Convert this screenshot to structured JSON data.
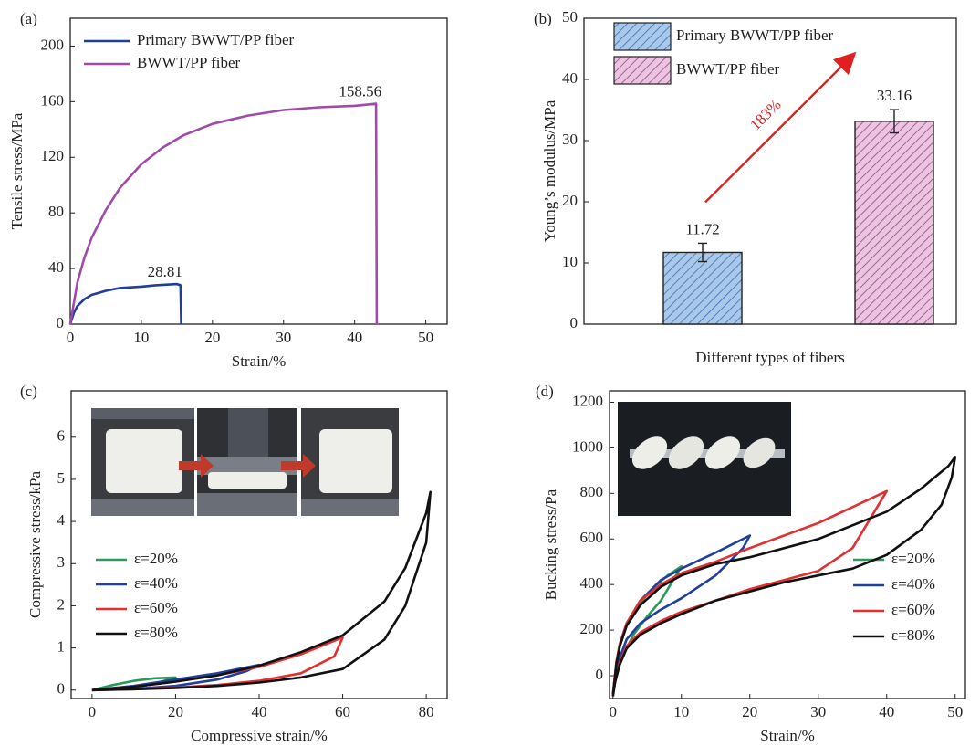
{
  "chart_data": [
    {
      "type": "line",
      "panel_label": "(a)",
      "x_label": "Strain/%",
      "y_label": "Tensile stress/MPa",
      "xlim": [
        0,
        53
      ],
      "xticks": [
        0,
        10,
        20,
        30,
        40,
        50
      ],
      "ylim": [
        0,
        220
      ],
      "yticks": [
        0,
        40,
        80,
        120,
        160,
        200
      ],
      "legend": "upper left",
      "label_peak": true,
      "series": [
        {
          "name": "Primary BWWT/PP fiber",
          "color": "#1f3f9a",
          "x": [
            0,
            0.5,
            1,
            2,
            3,
            5,
            7,
            10,
            12,
            15,
            15.5,
            15.6
          ],
          "values": [
            0,
            8,
            13,
            18,
            21,
            24,
            26,
            27,
            28,
            28.81,
            28,
            0
          ]
        },
        {
          "name": "BWWT/PP fiber",
          "color": "#a14aa8",
          "x": [
            0,
            1,
            2,
            3,
            5,
            7,
            10,
            13,
            16,
            20,
            25,
            30,
            35,
            40,
            43,
            43.1
          ],
          "values": [
            0,
            30,
            48,
            62,
            82,
            98,
            115,
            127,
            136,
            144,
            150,
            154,
            156,
            157,
            158.56,
            0
          ]
        }
      ]
    },
    {
      "type": "bar",
      "panel_label": "(b)",
      "x_label": "Different types of fibers",
      "y_label": "Young’s modulus/MPa",
      "ylim": [
        0,
        50
      ],
      "yticks": [
        0,
        10,
        20,
        30,
        40,
        50
      ],
      "legend": "upper left",
      "annotation": "183%",
      "series": [
        {
          "name": "Primary BWWT/PP fiber",
          "color": "#a9c8ea",
          "hatch_color": "#3b6fb0",
          "values": [
            11.72
          ],
          "errors": [
            1.5
          ]
        },
        {
          "name": "BWWT/PP fiber",
          "color": "#ecc4e0",
          "hatch_color": "#8a4a86",
          "values": [
            33.16
          ],
          "errors": [
            1.9
          ]
        }
      ]
    },
    {
      "type": "line",
      "panel_label": "(c)",
      "x_label": "Compressive strain/%",
      "y_label": "Compressive stress/kPa",
      "xlim": [
        -5,
        85
      ],
      "xticks": [
        0,
        20,
        40,
        60,
        80
      ],
      "ylim": [
        -0.2,
        7.1
      ],
      "yticks": [
        0,
        1,
        2,
        3,
        4,
        5,
        6
      ],
      "legend": "center left",
      "series": [
        {
          "name": "ε=20%",
          "color": "#2a9a5a",
          "x": [
            0,
            5,
            10,
            15,
            20,
            15,
            10,
            5,
            0
          ],
          "values": [
            0,
            0.12,
            0.22,
            0.28,
            0.3,
            0.15,
            0.06,
            0.02,
            0
          ]
        },
        {
          "name": "ε=40%",
          "color": "#2040a0",
          "x": [
            0,
            10,
            20,
            30,
            40,
            37,
            30,
            20,
            10,
            0
          ],
          "values": [
            0,
            0.1,
            0.25,
            0.4,
            0.6,
            0.45,
            0.25,
            0.1,
            0.03,
            0
          ]
        },
        {
          "name": "ε=60%",
          "color": "#e03030",
          "x": [
            0,
            10,
            20,
            30,
            40,
            50,
            60,
            58,
            50,
            40,
            30,
            20,
            10,
            0
          ],
          "values": [
            0,
            0.08,
            0.2,
            0.35,
            0.55,
            0.85,
            1.25,
            0.8,
            0.4,
            0.22,
            0.12,
            0.06,
            0.02,
            0
          ]
        },
        {
          "name": "ε=80%",
          "color": "#111111",
          "x": [
            0,
            10,
            20,
            30,
            40,
            50,
            60,
            70,
            75,
            80,
            81,
            80,
            75,
            70,
            60,
            50,
            40,
            30,
            20,
            10,
            0
          ],
          "values": [
            0,
            0.08,
            0.2,
            0.35,
            0.58,
            0.9,
            1.3,
            2.1,
            2.9,
            4.2,
            4.7,
            3.5,
            2.0,
            1.2,
            0.5,
            0.3,
            0.18,
            0.1,
            0.05,
            0.02,
            0
          ]
        }
      ]
    },
    {
      "type": "line",
      "panel_label": "(d)",
      "x_label": "Strain/%",
      "y_label": "Bucking stress/Pa",
      "xlim": [
        -0.5,
        51.5
      ],
      "xticks": [
        0,
        10,
        20,
        30,
        40,
        50
      ],
      "ylim": [
        -100,
        1250
      ],
      "yticks": [
        0,
        200,
        400,
        600,
        800,
        1000,
        1200
      ],
      "legend": "lower right",
      "series": [
        {
          "name": "ε=20%",
          "color": "#2a9a5a",
          "x": [
            0,
            0.5,
            1,
            2,
            4,
            6,
            8,
            10,
            9,
            7,
            5,
            3,
            1,
            0.3,
            0
          ],
          "values": [
            -80,
            50,
            130,
            220,
            320,
            390,
            440,
            480,
            430,
            330,
            260,
            180,
            60,
            -30,
            -80
          ]
        },
        {
          "name": "ε=40%",
          "color": "#2040a0",
          "x": [
            0,
            0.5,
            1,
            2,
            4,
            7,
            10,
            15,
            20,
            19,
            15,
            10,
            7,
            4,
            2,
            1,
            0.3,
            0
          ],
          "values": [
            -80,
            60,
            140,
            230,
            330,
            420,
            470,
            540,
            615,
            560,
            440,
            340,
            290,
            230,
            160,
            80,
            -30,
            -80
          ]
        },
        {
          "name": "ε=60%",
          "color": "#e03030",
          "x": [
            0,
            0.5,
            1,
            2,
            4,
            7,
            10,
            15,
            20,
            30,
            40,
            39,
            37,
            35,
            30,
            25,
            20,
            15,
            10,
            7,
            4,
            2,
            1,
            0.3,
            0
          ],
          "values": [
            -80,
            60,
            140,
            230,
            330,
            400,
            450,
            500,
            560,
            670,
            810,
            760,
            660,
            560,
            460,
            420,
            380,
            330,
            280,
            240,
            190,
            130,
            60,
            -30,
            -80
          ]
        },
        {
          "name": "ε=80%",
          "color": "#111111",
          "x": [
            0,
            0.5,
            1,
            2,
            4,
            7,
            10,
            15,
            20,
            30,
            40,
            45,
            49,
            50,
            49.5,
            48,
            45,
            40,
            35,
            30,
            25,
            20,
            15,
            10,
            7,
            4,
            2,
            1,
            0.3,
            0
          ],
          "values": [
            -90,
            50,
            130,
            220,
            310,
            390,
            440,
            490,
            520,
            600,
            720,
            820,
            920,
            960,
            870,
            750,
            640,
            530,
            470,
            440,
            410,
            370,
            330,
            270,
            230,
            180,
            120,
            50,
            -30,
            -90
          ]
        }
      ]
    }
  ]
}
